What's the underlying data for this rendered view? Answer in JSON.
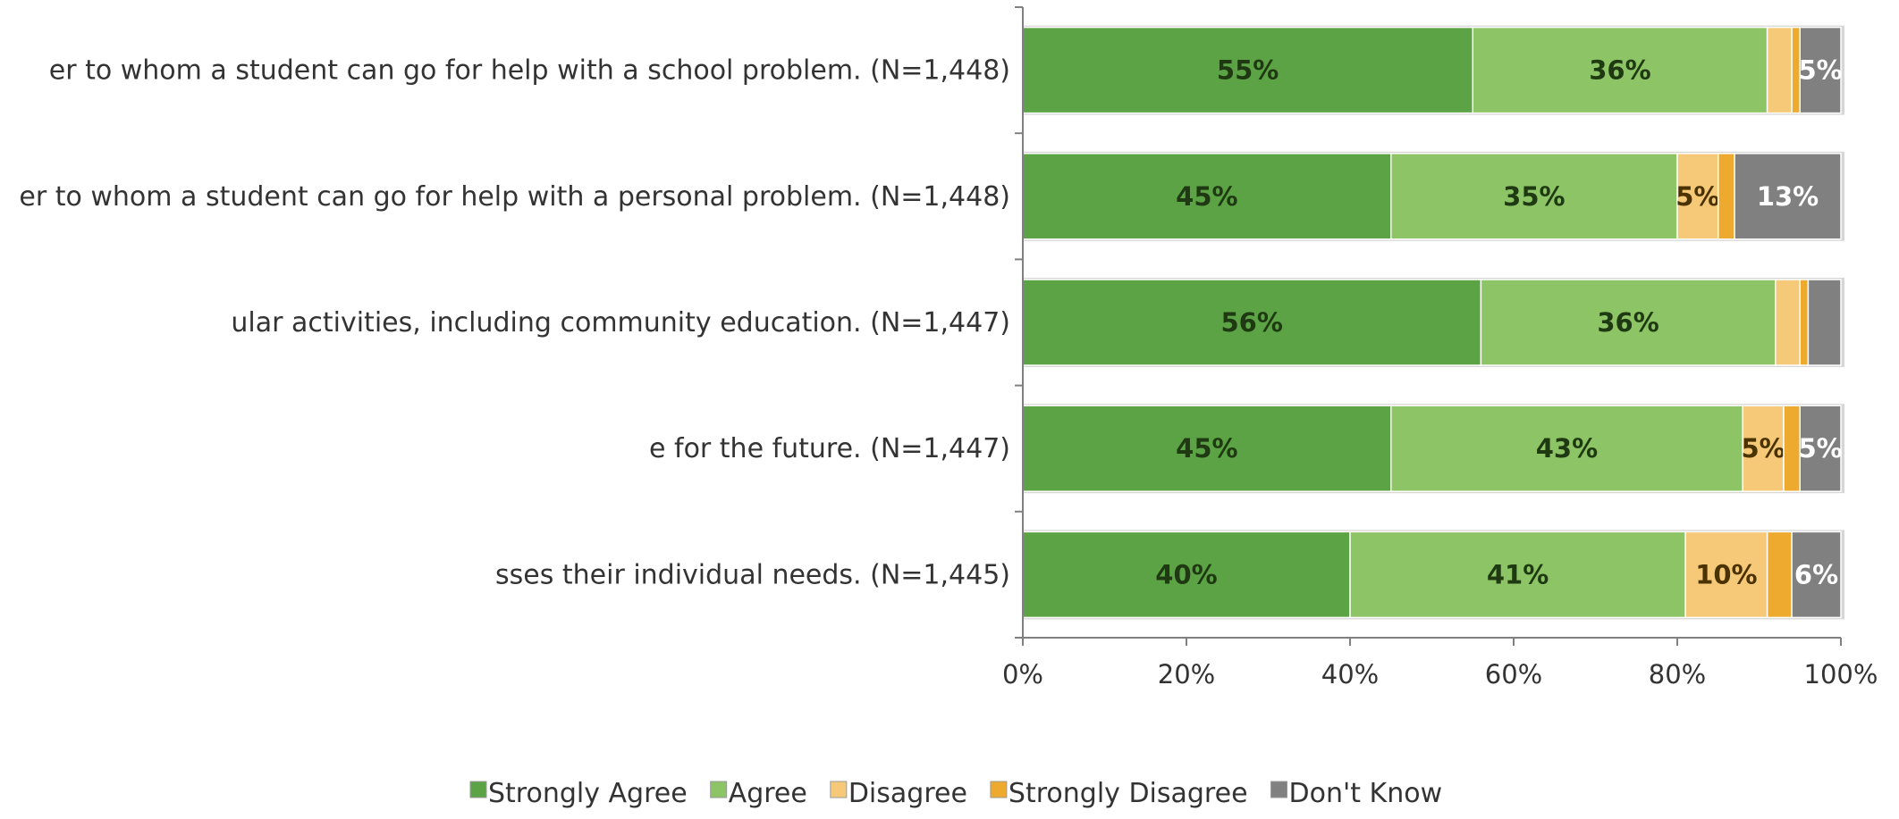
{
  "chart_data": {
    "type": "bar",
    "orientation": "horizontal",
    "stacked": true,
    "categories": [
      "er to whom a student can go for help with a school problem. (N=1,448)",
      "er to whom a student can go for help with a personal problem. (N=1,448)",
      "ular activities, including community education. (N=1,447)",
      "e for the future. (N=1,447)",
      "sses their individual needs. (N=1,445)"
    ],
    "series": [
      {
        "name": "Strongly Agree",
        "color": "#5ba345",
        "text_color": "#1f3a12",
        "values": [
          55,
          45,
          56,
          45,
          40
        ],
        "labels": [
          "55%",
          "45%",
          "56%",
          "45%",
          "40%"
        ]
      },
      {
        "name": "Agree",
        "color": "#8cc466",
        "text_color": "#1f3a12",
        "values": [
          36,
          35,
          36,
          43,
          41
        ],
        "labels": [
          "36%",
          "35%",
          "36%",
          "43%",
          "41%"
        ]
      },
      {
        "name": "Disagree",
        "color": "#f6c978",
        "text_color": "#4a3300",
        "values": [
          3,
          5,
          3,
          5,
          10
        ],
        "labels": [
          "",
          "5%",
          "",
          "5%",
          "10%"
        ]
      },
      {
        "name": "Strongly Disagree",
        "color": "#eeaa2e",
        "text_color": "#4a3300",
        "values": [
          1,
          2,
          1,
          2,
          3
        ],
        "labels": [
          "",
          "",
          "",
          "",
          ""
        ]
      },
      {
        "name": "Don't Know",
        "color": "#808080",
        "text_color": "#ffffff",
        "values": [
          5,
          13,
          4,
          5,
          6
        ],
        "labels": [
          "5%",
          "13%",
          "",
          "5%",
          "6%"
        ]
      }
    ],
    "xlim": [
      0,
      100
    ],
    "x_ticks": [
      "0%",
      "20%",
      "40%",
      "60%",
      "80%",
      "100%"
    ],
    "legend_position": "bottom",
    "grid": false
  }
}
